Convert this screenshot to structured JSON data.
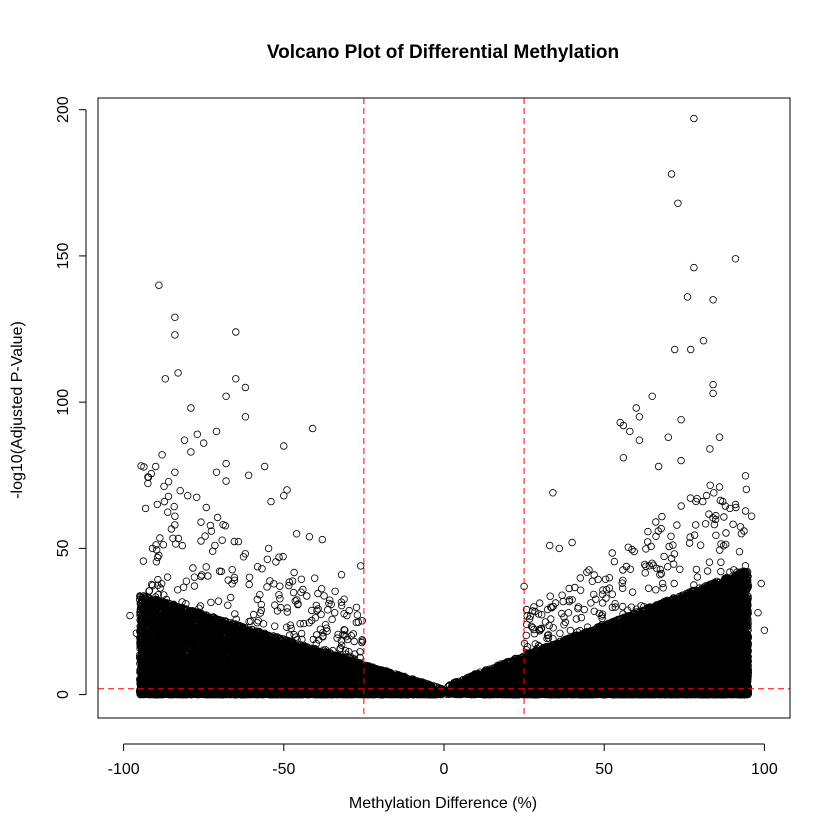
{
  "chart_data": {
    "type": "scatter",
    "title": "Volcano Plot of Differential Methylation",
    "xlabel": "Methylation Difference (%)",
    "ylabel": "-log10(Adjusted P-Value)",
    "xlim": [
      -108,
      108
    ],
    "ylim": [
      -8,
      204
    ],
    "x_ticks": [
      -100,
      -50,
      0,
      50,
      100
    ],
    "y_ticks": [
      0,
      50,
      100,
      150,
      200
    ],
    "x_tick_labels": [
      "-100",
      "-50",
      "0",
      "50",
      "100"
    ],
    "y_tick_labels": [
      "0",
      "50",
      "100",
      "150",
      "200"
    ],
    "grid": false,
    "legend": "none",
    "thresholds": {
      "vertical_x": [
        -25,
        25
      ],
      "horizontal_y": [
        2
      ],
      "line_color": "#ff0000",
      "line_style": "dashed"
    },
    "marker": {
      "shape": "open-circle",
      "color": "#000000"
    },
    "highlighted_points": [
      {
        "x": 78,
        "y": 197
      },
      {
        "x": 71,
        "y": 178
      },
      {
        "x": 73,
        "y": 168
      },
      {
        "x": 91,
        "y": 149
      },
      {
        "x": 78,
        "y": 146
      },
      {
        "x": -89,
        "y": 140
      },
      {
        "x": 76,
        "y": 136
      },
      {
        "x": 84,
        "y": 135
      },
      {
        "x": -84,
        "y": 129
      },
      {
        "x": -65,
        "y": 124
      },
      {
        "x": -84,
        "y": 123
      },
      {
        "x": 81,
        "y": 121
      },
      {
        "x": 72,
        "y": 118
      },
      {
        "x": 77,
        "y": 118
      },
      {
        "x": -83,
        "y": 110
      },
      {
        "x": -87,
        "y": 108
      },
      {
        "x": -65,
        "y": 108
      },
      {
        "x": 84,
        "y": 106
      },
      {
        "x": -62,
        "y": 105
      },
      {
        "x": 84,
        "y": 103
      },
      {
        "x": 65,
        "y": 102
      },
      {
        "x": -68,
        "y": 102
      },
      {
        "x": -79,
        "y": 98
      },
      {
        "x": 60,
        "y": 98
      },
      {
        "x": -62,
        "y": 95
      },
      {
        "x": 61,
        "y": 95
      },
      {
        "x": 55,
        "y": 93
      },
      {
        "x": 74,
        "y": 94
      },
      {
        "x": -41,
        "y": 91
      },
      {
        "x": -71,
        "y": 90
      },
      {
        "x": -77,
        "y": 89
      },
      {
        "x": 58,
        "y": 90
      },
      {
        "x": -81,
        "y": 87
      },
      {
        "x": -75,
        "y": 86
      },
      {
        "x": -50,
        "y": 85
      },
      {
        "x": 56,
        "y": 92
      },
      {
        "x": 61,
        "y": 87
      },
      {
        "x": 70,
        "y": 88
      },
      {
        "x": 86,
        "y": 88
      },
      {
        "x": -88,
        "y": 82
      },
      {
        "x": -79,
        "y": 83
      },
      {
        "x": -90,
        "y": 78
      },
      {
        "x": -56,
        "y": 78
      },
      {
        "x": -68,
        "y": 79
      },
      {
        "x": 56,
        "y": 81
      },
      {
        "x": 74,
        "y": 80
      },
      {
        "x": 83,
        "y": 84
      },
      {
        "x": -71,
        "y": 76
      },
      {
        "x": -84,
        "y": 76
      },
      {
        "x": -61,
        "y": 75
      },
      {
        "x": 67,
        "y": 78
      },
      {
        "x": -49,
        "y": 70
      },
      {
        "x": -50,
        "y": 68
      },
      {
        "x": -68,
        "y": 73
      },
      {
        "x": 34,
        "y": 69
      },
      {
        "x": 86,
        "y": 71
      },
      {
        "x": 91,
        "y": 65
      },
      {
        "x": -54,
        "y": 66
      },
      {
        "x": -80,
        "y": 68
      },
      {
        "x": -84,
        "y": 61
      },
      {
        "x": 79,
        "y": 67
      },
      {
        "x": 96,
        "y": 61
      },
      {
        "x": -46,
        "y": 55
      },
      {
        "x": -42,
        "y": 54
      },
      {
        "x": -38,
        "y": 53
      },
      {
        "x": 33,
        "y": 51
      },
      {
        "x": 36,
        "y": 50
      },
      {
        "x": -91,
        "y": 50
      },
      {
        "x": -26,
        "y": 44
      },
      {
        "x": -32,
        "y": 41
      },
      {
        "x": 25,
        "y": 37
      },
      {
        "x": 40,
        "y": 52
      },
      {
        "x": 99,
        "y": 38
      },
      {
        "x": -93,
        "y": 31
      },
      {
        "x": -98,
        "y": 27
      },
      {
        "x": -96,
        "y": 21
      },
      {
        "x": 98,
        "y": 28
      },
      {
        "x": 100,
        "y": 22
      }
    ],
    "point_cloud": {
      "seed": 20240607,
      "bulk_points": 26000,
      "baseline_points": 1500,
      "mid_points": 900,
      "x_range": [
        -95,
        95
      ],
      "baseline_y": 1
    }
  }
}
